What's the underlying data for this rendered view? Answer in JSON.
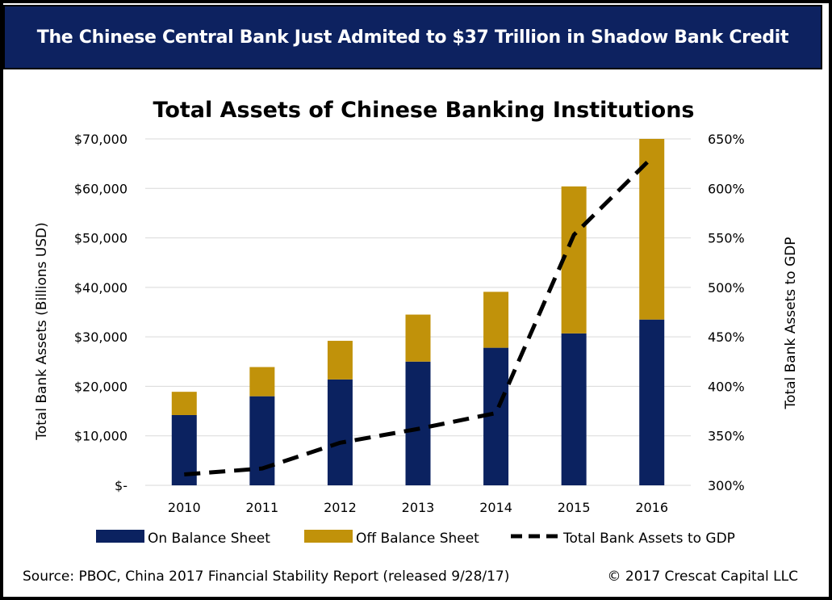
{
  "banner": {
    "title": "The Chinese Central Bank Just Admited to $37 Trillion in Shadow Bank Credit"
  },
  "colors": {
    "banner_bg": "#0d2260",
    "on_balance": "#0b2260",
    "off_balance": "#c1920a",
    "ratio_line": "#000000",
    "grid": "#d9d9d9"
  },
  "chart_data": {
    "type": "bar",
    "stacked": true,
    "title": "Total Assets of Chinese Banking Institutions",
    "ylabel": "Total Bank Assets (Billions USD)",
    "y2label": "Total Bank Assets to GDP",
    "categories": [
      "2010",
      "2011",
      "2012",
      "2013",
      "2014",
      "2015",
      "2016"
    ],
    "ylim": [
      0,
      70000
    ],
    "y2lim": [
      300,
      650
    ],
    "y_ticks": [
      {
        "value": 0,
        "label": "$-"
      },
      {
        "value": 10000,
        "label": "$10,000"
      },
      {
        "value": 20000,
        "label": "$20,000"
      },
      {
        "value": 30000,
        "label": "$30,000"
      },
      {
        "value": 40000,
        "label": "$40,000"
      },
      {
        "value": 50000,
        "label": "$50,000"
      },
      {
        "value": 60000,
        "label": "$60,000"
      },
      {
        "value": 70000,
        "label": "$70,000"
      }
    ],
    "y2_ticks": [
      {
        "value": 300,
        "label": "300%"
      },
      {
        "value": 350,
        "label": "350%"
      },
      {
        "value": 400,
        "label": "400%"
      },
      {
        "value": 450,
        "label": "450%"
      },
      {
        "value": 500,
        "label": "500%"
      },
      {
        "value": 550,
        "label": "550%"
      },
      {
        "value": 600,
        "label": "600%"
      },
      {
        "value": 650,
        "label": "650%"
      }
    ],
    "grid": true,
    "legend_position": "bottom",
    "series": [
      {
        "name": "On Balance Sheet",
        "type": "bar",
        "values": [
          14200,
          18000,
          21400,
          25000,
          27800,
          30700,
          33500
        ]
      },
      {
        "name": "Off Balance Sheet",
        "type": "bar",
        "values": [
          4700,
          5900,
          7800,
          9500,
          11300,
          29700,
          36500
        ]
      },
      {
        "name": "Total Bank Assets to GDP",
        "type": "line",
        "axis": "right",
        "style": "dashed",
        "values": [
          311,
          317,
          343,
          357,
          373,
          553,
          631
        ]
      }
    ]
  },
  "footer": {
    "source": "Source: PBOC, China 2017 Financial Stability Report (released 9/28/17)",
    "copyright": "© 2017 Crescat Capital LLC"
  }
}
